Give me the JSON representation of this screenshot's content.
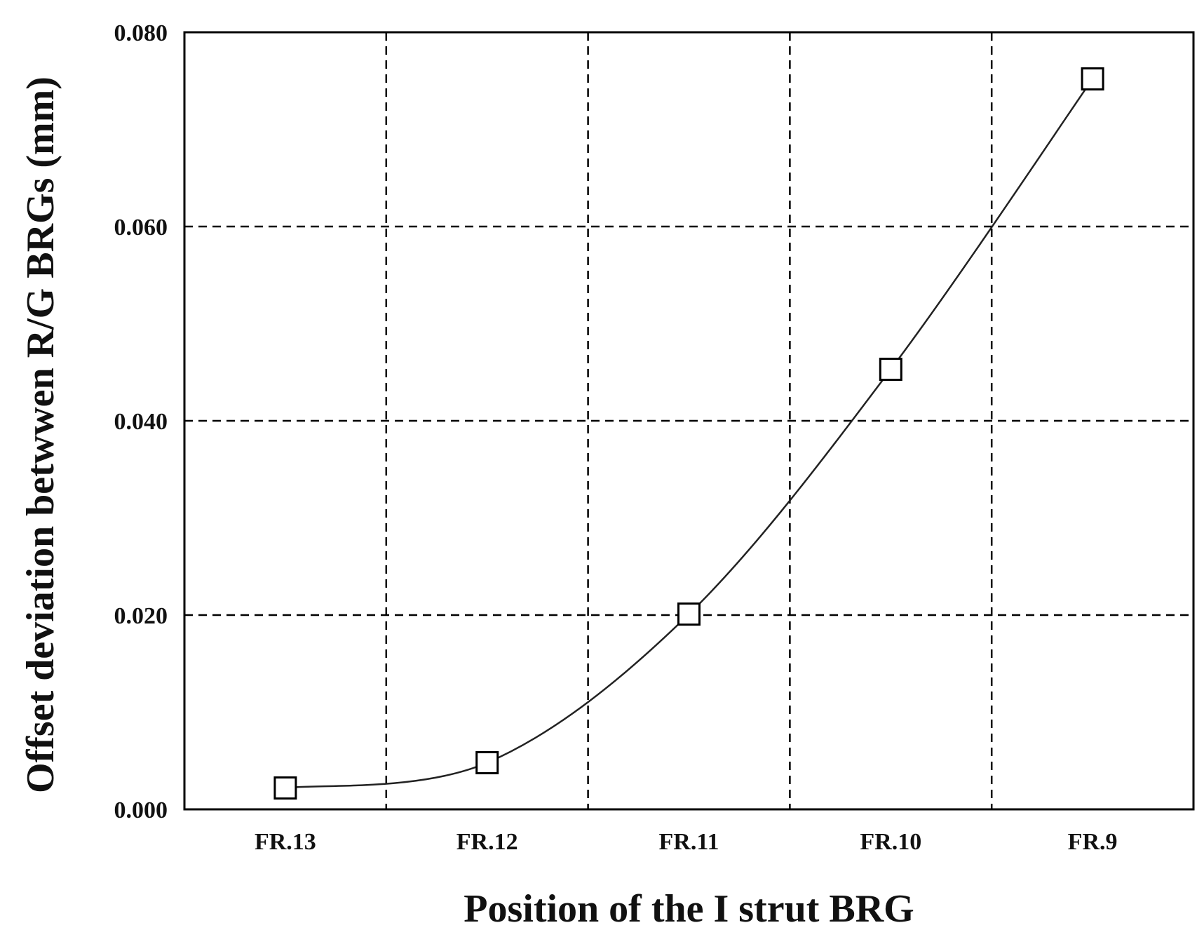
{
  "chart_data": {
    "type": "line",
    "categories": [
      "FR.13",
      "FR.12",
      "FR.11",
      "FR.10",
      "FR.9"
    ],
    "series": [
      {
        "values": [
          0.0022,
          0.0048,
          0.0201,
          0.0453,
          0.0752
        ]
      }
    ],
    "title": "",
    "xlabel": "Position of the I strut BRG",
    "ylabel": "Offset deviation betwwen R/G BRGs (mm)",
    "ylim": [
      0.0,
      0.08
    ],
    "yticks": [
      "0.000",
      "0.020",
      "0.040",
      "0.060",
      "0.080"
    ],
    "grid": true,
    "marker": "open-square",
    "line_color": "#222222"
  }
}
